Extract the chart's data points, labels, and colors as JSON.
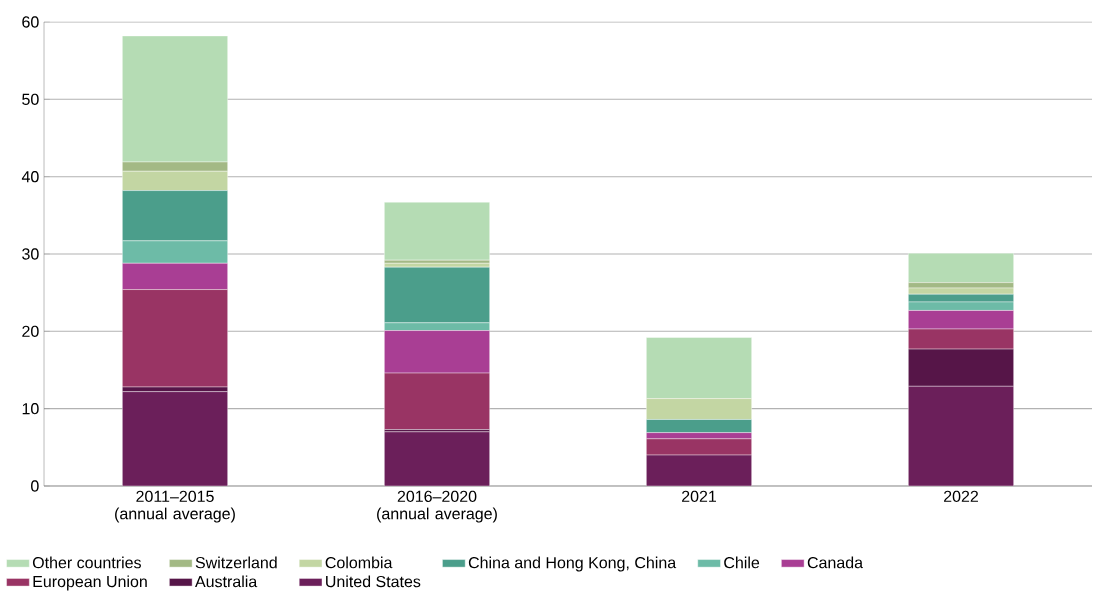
{
  "chart_data": {
    "type": "bar",
    "stacked": true,
    "categories": [
      "2011–2015 (annual average)",
      "2016–2020 (annual average)",
      "2021",
      "2022"
    ],
    "series": [
      {
        "name": "United States",
        "color": "#6b1f5a",
        "values": [
          12.2,
          7.0,
          4.0,
          12.9
        ]
      },
      {
        "name": "Australia",
        "color": "#561548",
        "values": [
          0.6,
          0.3,
          0,
          4.8
        ]
      },
      {
        "name": "European Union",
        "color": "#993464",
        "values": [
          12.6,
          7.3,
          2.1,
          2.6
        ]
      },
      {
        "name": "Canada",
        "color": "#a93e94",
        "values": [
          3.4,
          5.5,
          0.8,
          2.4
        ]
      },
      {
        "name": "Chile",
        "color": "#6dbba7",
        "values": [
          2.9,
          1.0,
          0,
          1.1
        ]
      },
      {
        "name": "China and Hong Kong, China",
        "color": "#4b9e8b",
        "values": [
          6.5,
          7.2,
          1.7,
          1.0
        ]
      },
      {
        "name": "Colombia",
        "color": "#c3d6a3",
        "values": [
          2.5,
          0.5,
          2.7,
          0.8
        ]
      },
      {
        "name": "Switzerland",
        "color": "#a3b985",
        "values": [
          1.2,
          0.4,
          0,
          0.7
        ]
      },
      {
        "name": "Other countries",
        "color": "#b5dcb4",
        "values": [
          16.3,
          7.5,
          7.9,
          3.8
        ]
      }
    ],
    "ylim": [
      0,
      60
    ],
    "yticks": [
      0,
      10,
      20,
      30,
      40,
      50,
      60
    ],
    "grid": "y",
    "legend": "bottom"
  }
}
